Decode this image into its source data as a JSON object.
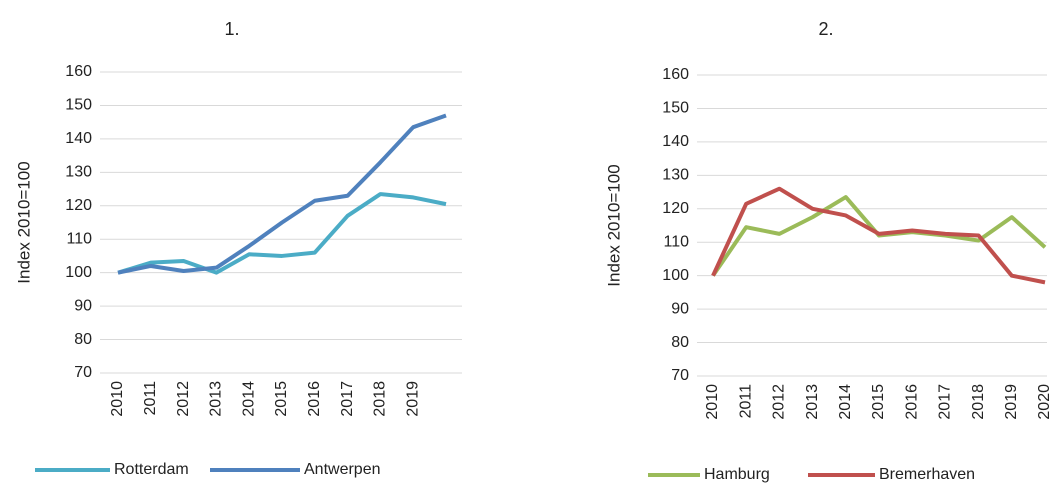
{
  "chart_data": [
    {
      "type": "line",
      "title": "1.",
      "y_label": "Index 2010=100",
      "categories": [
        "2010",
        "2011",
        "2012",
        "2013",
        "2014",
        "2015",
        "2016",
        "2017",
        "2018",
        "2019",
        null
      ],
      "series": [
        {
          "name": "Rotterdam",
          "color": "#4bacc6",
          "values": [
            100,
            103,
            103.5,
            100,
            105.5,
            105,
            106,
            117,
            123.5,
            122.5,
            120.5
          ]
        },
        {
          "name": "Antwerpen",
          "color": "#4f81bd",
          "values": [
            100,
            102,
            100.5,
            101.5,
            108,
            115,
            121.5,
            123,
            133,
            143.5,
            147
          ]
        }
      ],
      "ylim": [
        70,
        160
      ],
      "yticks": [
        70,
        80,
        90,
        100,
        110,
        120,
        130,
        140,
        150,
        160
      ],
      "grid": true
    },
    {
      "type": "line",
      "title": "2.",
      "y_label": "Index 2010=100",
      "categories": [
        "2010",
        "2011",
        "2012",
        "2013",
        "2014",
        "2015",
        "2016",
        "2017",
        "2018",
        "2019",
        "2020"
      ],
      "series": [
        {
          "name": "Hamburg",
          "color": "#9bbb59",
          "values": [
            100,
            114.5,
            112.5,
            117.5,
            123.5,
            112,
            113,
            112,
            110.5,
            117.5,
            108.5
          ]
        },
        {
          "name": "Bremerhaven",
          "color": "#c0504d",
          "values": [
            100,
            121.5,
            126,
            120,
            118,
            112.5,
            113.5,
            112.5,
            112,
            100,
            98
          ]
        }
      ],
      "ylim": [
        70,
        160
      ],
      "yticks": [
        70,
        80,
        90,
        100,
        110,
        120,
        130,
        140,
        150,
        160
      ],
      "grid": true
    }
  ]
}
